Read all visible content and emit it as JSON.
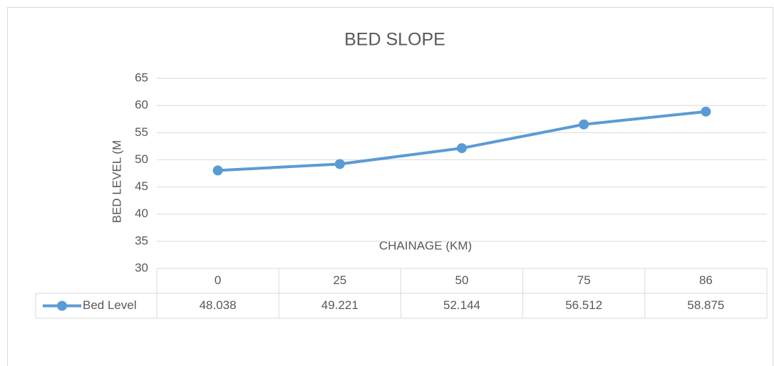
{
  "chart_data": {
    "type": "line",
    "title": "BED SLOPE",
    "x_label": "CHAINAGE (KM)",
    "y_label": "BED LEVEL (M",
    "categories": [
      "0",
      "25",
      "50",
      "75",
      "86"
    ],
    "series": [
      {
        "name": "Bed Level",
        "color": "#5b9bd5",
        "values": [
          48.038,
          49.221,
          52.144,
          56.512,
          58.875
        ]
      }
    ],
    "ylim": [
      30,
      65
    ],
    "yticks": [
      30,
      35,
      40,
      45,
      50,
      55,
      60,
      65
    ],
    "grid": true,
    "data_table": true
  }
}
